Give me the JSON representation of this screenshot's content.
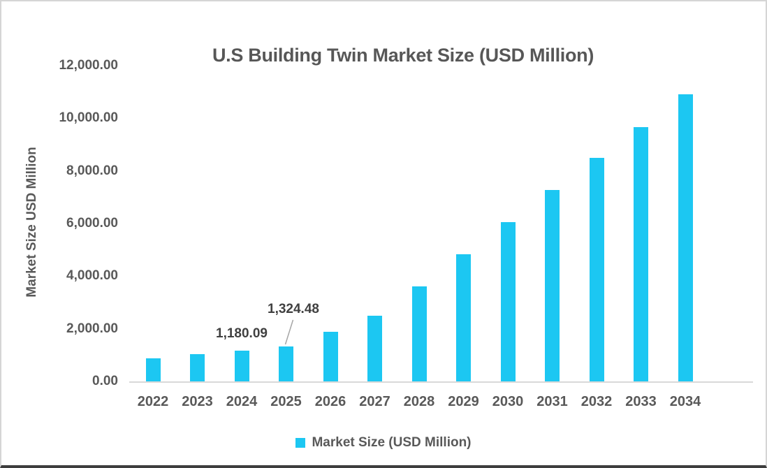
{
  "chart_data": {
    "type": "bar",
    "title": "U.S Building Twin Market Size (USD Million)",
    "xlabel": "",
    "ylabel": "Market Size USD Million",
    "legend": [
      "Market Size (USD Million)"
    ],
    "legend_position": "bottom",
    "grid": false,
    "ylim": [
      0,
      12000
    ],
    "y_ticks": [
      {
        "label": "0.00",
        "value": 0
      },
      {
        "label": "2,000.00",
        "value": 2000
      },
      {
        "label": "4,000.00",
        "value": 4000
      },
      {
        "label": "6,000.00",
        "value": 6000
      },
      {
        "label": "8,000.00",
        "value": 8000
      },
      {
        "label": "10,000.00",
        "value": 10000
      },
      {
        "label": "12,000.00",
        "value": 12000
      }
    ],
    "categories": [
      "2022",
      "2023",
      "2024",
      "2025",
      "2026",
      "2027",
      "2028",
      "2029",
      "2030",
      "2031",
      "2032",
      "2033",
      "2034"
    ],
    "series": [
      {
        "name": "Market Size (USD Million)",
        "values": [
          880,
          1030,
          1180.09,
          1324.48,
          1890,
          2500,
          3620,
          4830,
          6050,
          7270,
          8490,
          9670,
          10920
        ]
      }
    ],
    "data_labels": [
      {
        "category": "2024",
        "text": "1,180.09",
        "callout": false
      },
      {
        "category": "2025",
        "text": "1,324.48",
        "callout": true
      }
    ],
    "colors": {
      "bar": "#1cc7f2",
      "text": "#595959",
      "axis_line": "#d9d9d9",
      "callout_line": "#a6a6a6"
    }
  }
}
